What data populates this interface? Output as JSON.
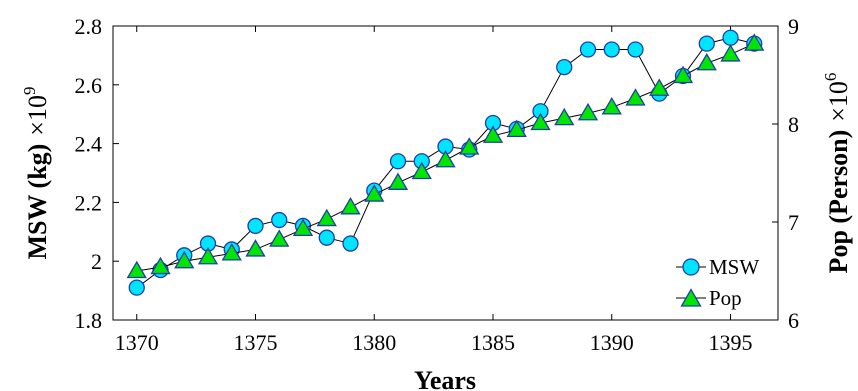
{
  "chart_data": {
    "type": "line",
    "xlabel": "Years",
    "ylabel_left": "MSW (kg)",
    "ylabel_left_multiplier": "×10",
    "ylabel_left_exponent": "9",
    "ylabel_right": "Pop (Person)",
    "ylabel_right_multiplier": "×10",
    "ylabel_right_exponent": "6",
    "xlim": [
      1369,
      1397
    ],
    "ylim_left": [
      1.8,
      2.8
    ],
    "ylim_right": [
      6,
      9
    ],
    "xticks": [
      1370,
      1375,
      1380,
      1385,
      1390,
      1395
    ],
    "yticks_left": [
      1.8,
      2,
      2.2,
      2.4,
      2.6,
      2.8
    ],
    "yticks_left_labels": [
      "1.8",
      "2",
      "2.2",
      "2.4",
      "2.6",
      "2.8"
    ],
    "yticks_right": [
      6,
      7,
      8,
      9
    ],
    "yticks_right_labels": [
      "6",
      "7",
      "8",
      "9"
    ],
    "x": [
      1370,
      1371,
      1372,
      1373,
      1374,
      1375,
      1376,
      1377,
      1378,
      1379,
      1380,
      1381,
      1382,
      1383,
      1384,
      1385,
      1386,
      1387,
      1388,
      1389,
      1390,
      1391,
      1392,
      1393,
      1394,
      1395,
      1396
    ],
    "legend_position": "bottom-right",
    "series": [
      {
        "name": "MSW",
        "axis": "left",
        "marker": "circle",
        "color": "#00e5ff",
        "values": [
          1.91,
          1.97,
          2.02,
          2.06,
          2.04,
          2.12,
          2.14,
          2.12,
          2.08,
          2.06,
          2.24,
          2.34,
          2.34,
          2.39,
          2.38,
          2.47,
          2.45,
          2.51,
          2.66,
          2.72,
          2.72,
          2.72,
          2.57,
          2.63,
          2.74,
          2.76,
          2.74
        ]
      },
      {
        "name": "Pop",
        "axis": "right",
        "marker": "triangle",
        "color": "#00e600",
        "values": [
          6.5,
          6.54,
          6.6,
          6.64,
          6.68,
          6.72,
          6.82,
          6.93,
          7.03,
          7.15,
          7.28,
          7.4,
          7.51,
          7.63,
          7.76,
          7.88,
          7.94,
          8.01,
          8.06,
          8.11,
          8.17,
          8.26,
          8.36,
          8.49,
          8.62,
          8.71,
          8.82
        ]
      }
    ]
  }
}
